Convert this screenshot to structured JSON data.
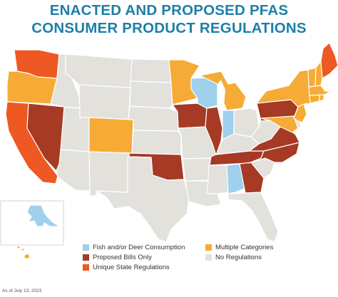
{
  "title": {
    "line1": "ENACTED AND PROPOSED PFAS",
    "line2": "CONSUMER PRODUCT REGULATIONS"
  },
  "colors": {
    "fish_deer": "#9fd0ec",
    "proposed": "#a63a24",
    "unique": "#ee5822",
    "multiple": "#f5ab35",
    "none": "#e3e1dc"
  },
  "legend": [
    {
      "key": "fish_deer",
      "label": "Fish and/or Deer Consumption"
    },
    {
      "key": "multiple",
      "label": "Multiple Categories"
    },
    {
      "key": "proposed",
      "label": "Proposed Bills Only"
    },
    {
      "key": "none",
      "label": "No Regulations"
    },
    {
      "key": "unique",
      "label": "Unique State Regulations"
    }
  ],
  "states": {
    "WA": "unique",
    "OR": "multiple",
    "CA": "unique",
    "NV": "proposed",
    "ID": "none",
    "MT": "none",
    "WY": "none",
    "UT": "none",
    "AZ": "none",
    "CO": "multiple",
    "NM": "none",
    "ND": "none",
    "SD": "none",
    "NE": "none",
    "KS": "none",
    "OK": "proposed",
    "TX": "none",
    "MN": "multiple",
    "IA": "proposed",
    "MO": "none",
    "AR": "none",
    "LA": "none",
    "WI": "fish_deer",
    "IL": "proposed",
    "MI": "multiple",
    "IN": "fish_deer",
    "OH": "none",
    "KY": "none",
    "TN": "proposed",
    "MS": "none",
    "AL": "fish_deer",
    "GA": "proposed",
    "FL": "none",
    "SC": "none",
    "NC": "proposed",
    "VA": "proposed",
    "WV": "none",
    "PA": "proposed",
    "NY": "multiple",
    "VT": "multiple",
    "NH": "multiple",
    "ME": "unique",
    "MA": "multiple",
    "CT": "multiple",
    "RI": "multiple",
    "NJ": "multiple",
    "DE": "none",
    "MD": "multiple",
    "AK": "fish_deer",
    "HI": "multiple"
  },
  "footnote": "As of July 13, 2023"
}
